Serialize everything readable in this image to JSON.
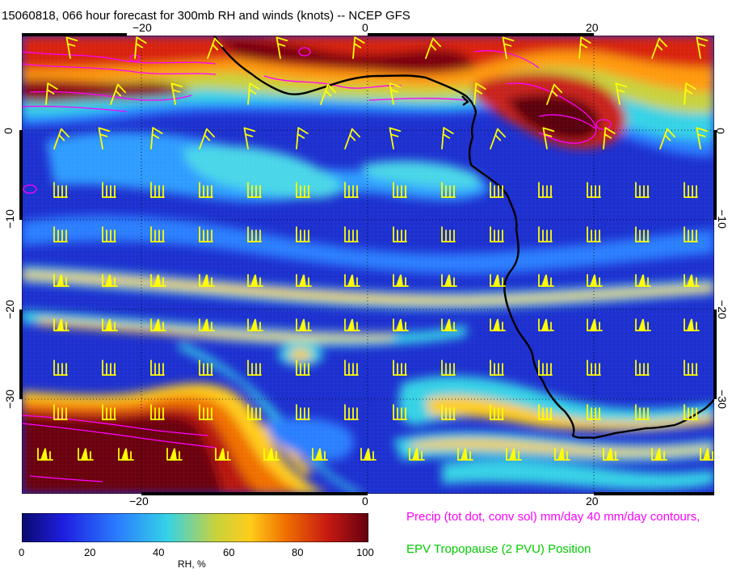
{
  "title": "15060818, 066 hour forecast for 300mb RH and winds (knots) -- NCEP GFS",
  "x_ticks": [
    "−20",
    "0",
    "20"
  ],
  "y_ticks": [
    "0",
    "−10",
    "−20",
    "−30"
  ],
  "colorbar": {
    "labels": [
      "0",
      "20",
      "40",
      "60",
      "80",
      "100"
    ],
    "title": "RH, %",
    "colors": [
      "#0a0a6e",
      "#1e1ee0",
      "#2a7fff",
      "#35d2e6",
      "#c8d23c",
      "#ffcc1a",
      "#f07000",
      "#c81a12",
      "#640010"
    ]
  },
  "legend": {
    "precip": "Precip (tot dot, conv sol) mm/day 40 mm/day contours,",
    "epv": "EPV Tropopause (2 PVU) Position"
  },
  "map_colors": {
    "wind_barbs": "#ffff00",
    "precip_contours": "#ff00ff",
    "coastline": "#000000",
    "tropopause": "#00cc00"
  }
}
